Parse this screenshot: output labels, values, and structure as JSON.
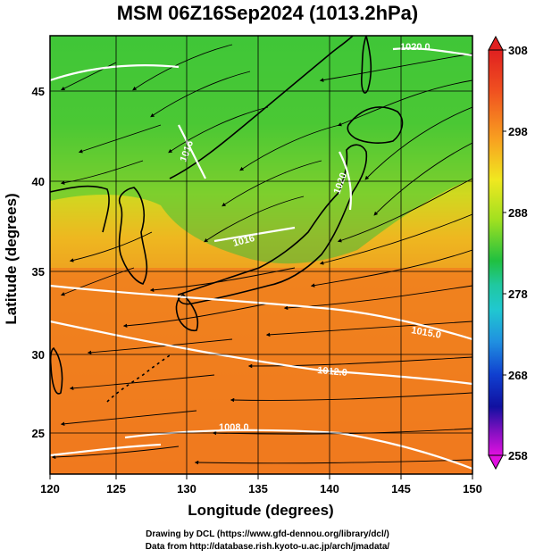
{
  "title": "MSM 06Z16Sep2024 (1013.2hPa)",
  "x_axis": {
    "label": "Longitude (degrees)",
    "ticks": [
      "120",
      "125",
      "130",
      "135",
      "140",
      "145",
      "150"
    ]
  },
  "y_axis": {
    "label": "Latitude  (degrees)",
    "ticks": [
      "25",
      "30",
      "35",
      "40",
      "45"
    ]
  },
  "colorbar": {
    "ticks": [
      "308",
      "298",
      "288",
      "278",
      "268",
      "258"
    ]
  },
  "contour_labels": [
    "1020.0",
    "1016",
    "1020",
    "1016",
    "1015.0",
    "1012.0",
    "1008.0"
  ],
  "credits": [
    "Drawing by DCL (https://www.gfd-dennou.org/library/dcl/)",
    "Data from http://database.rish.kyoto-u.ac.jp/arch/jmadata/"
  ],
  "colors": {
    "warm": "#f07a1e",
    "green": "#38c030",
    "yellow": "#e8e020",
    "contour": "#ffffff",
    "land_outline": "#000000"
  }
}
